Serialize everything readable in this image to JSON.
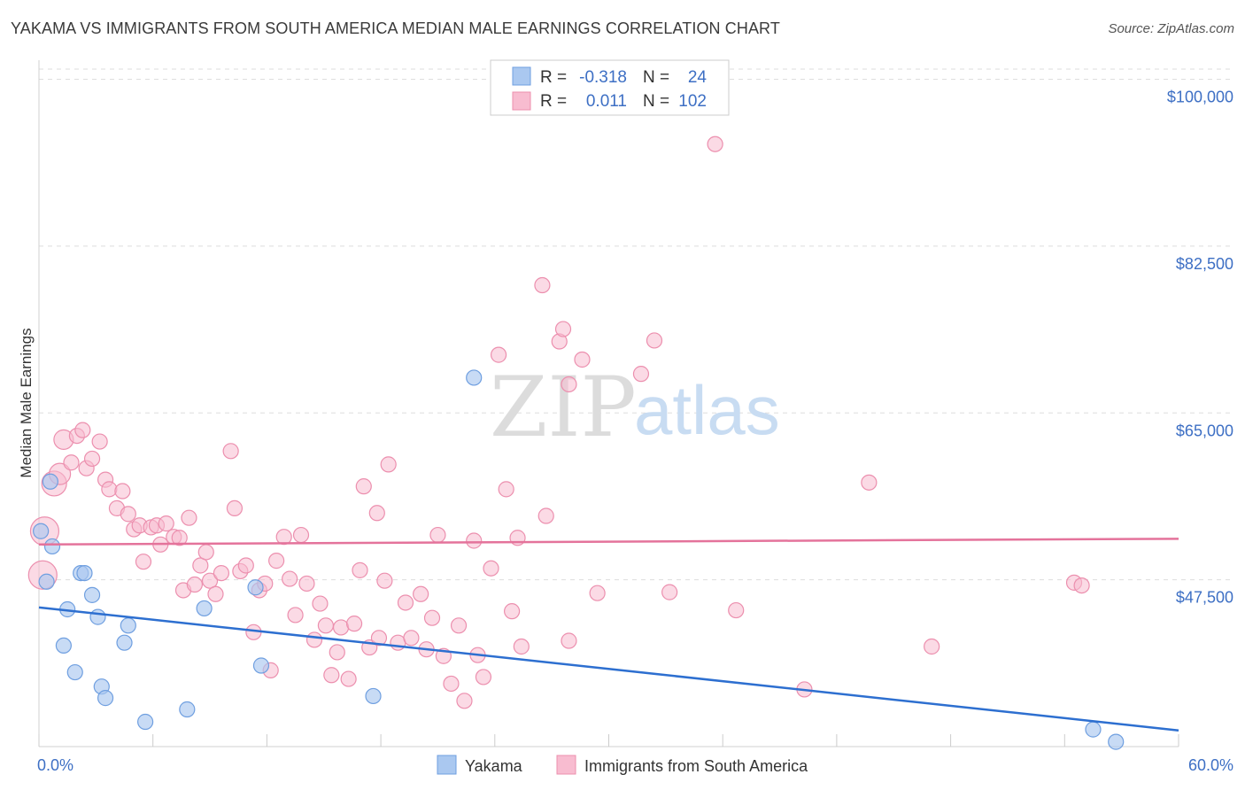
{
  "title": "YAKAMA VS IMMIGRANTS FROM SOUTH AMERICA MEDIAN MALE EARNINGS CORRELATION CHART",
  "source": "Source: ZipAtlas.com",
  "watermark": {
    "zip": "ZIP",
    "atlas": "atlas"
  },
  "colors": {
    "blue_fill": "#aac8f0",
    "blue_stroke": "#6f9fe0",
    "blue_line": "#2d6fd0",
    "pink_fill": "#f8bcd0",
    "pink_stroke": "#ec8fae",
    "pink_line": "#e4739b",
    "tick_text": "#3d6fc4",
    "grid": "#dddddd"
  },
  "legend": {
    "rows": [
      {
        "r_label": "R =",
        "r_value": "-0.318",
        "n_label": "N =",
        "n_value": "24"
      },
      {
        "r_label": "R =",
        "r_value": "0.011",
        "n_label": "N =",
        "n_value": "102"
      }
    ]
  },
  "bottom_legend": [
    "Yakama",
    "Immigrants from South America"
  ],
  "chart_data": {
    "type": "scatter",
    "title": "YAKAMA VS IMMIGRANTS FROM SOUTH AMERICA MEDIAN MALE EARNINGS CORRELATION CHART",
    "xlabel": "",
    "ylabel": "Median Male Earnings",
    "xlim": [
      0,
      60
    ],
    "ylim": [
      30000,
      102000
    ],
    "x_tick_labels": [
      "0.0%",
      "60.0%"
    ],
    "y_ticks": [
      47500,
      65000,
      82500,
      100000
    ],
    "y_tick_labels": [
      "$47,500",
      "$65,000",
      "$82,500",
      "$100,000"
    ],
    "series": [
      {
        "name": "Yakama",
        "r": -0.318,
        "n": 24,
        "trend": {
          "x": [
            0,
            60
          ],
          "y": [
            44600,
            31700
          ]
        },
        "points": [
          {
            "x": 0.1,
            "y": 52600
          },
          {
            "x": 0.4,
            "y": 47300
          },
          {
            "x": 0.6,
            "y": 57800
          },
          {
            "x": 0.7,
            "y": 51000
          },
          {
            "x": 1.3,
            "y": 40600
          },
          {
            "x": 1.5,
            "y": 44400
          },
          {
            "x": 1.9,
            "y": 37800
          },
          {
            "x": 2.2,
            "y": 48200
          },
          {
            "x": 2.4,
            "y": 48200
          },
          {
            "x": 2.8,
            "y": 45900
          },
          {
            "x": 3.1,
            "y": 43600
          },
          {
            "x": 3.3,
            "y": 36300
          },
          {
            "x": 3.5,
            "y": 35100
          },
          {
            "x": 4.5,
            "y": 40900
          },
          {
            "x": 4.7,
            "y": 42700
          },
          {
            "x": 5.6,
            "y": 32600
          },
          {
            "x": 7.8,
            "y": 33900
          },
          {
            "x": 8.7,
            "y": 44500
          },
          {
            "x": 11.4,
            "y": 46700
          },
          {
            "x": 11.7,
            "y": 38500
          },
          {
            "x": 17.6,
            "y": 35300
          },
          {
            "x": 22.9,
            "y": 68700
          },
          {
            "x": 55.5,
            "y": 31800
          },
          {
            "x": 56.7,
            "y": 30500
          }
        ]
      },
      {
        "name": "Immigrants from South America",
        "r": 0.011,
        "n": 102,
        "trend": {
          "x": [
            0,
            60
          ],
          "y": [
            51200,
            51800
          ]
        },
        "points": [
          {
            "x": 0.2,
            "y": 48000,
            "s": 16
          },
          {
            "x": 0.3,
            "y": 52600,
            "s": 16
          },
          {
            "x": 0.8,
            "y": 57600,
            "s": 14
          },
          {
            "x": 1.1,
            "y": 58600,
            "s": 12
          },
          {
            "x": 1.3,
            "y": 62200,
            "s": 11
          },
          {
            "x": 2.0,
            "y": 62600
          },
          {
            "x": 2.3,
            "y": 63200
          },
          {
            "x": 1.7,
            "y": 59800
          },
          {
            "x": 2.5,
            "y": 59200
          },
          {
            "x": 2.8,
            "y": 60200
          },
          {
            "x": 3.2,
            "y": 62000
          },
          {
            "x": 3.5,
            "y": 58000
          },
          {
            "x": 3.7,
            "y": 57000
          },
          {
            "x": 4.1,
            "y": 55000
          },
          {
            "x": 4.4,
            "y": 56800
          },
          {
            "x": 4.7,
            "y": 54400
          },
          {
            "x": 5.0,
            "y": 52800
          },
          {
            "x": 5.3,
            "y": 53200
          },
          {
            "x": 5.5,
            "y": 49400
          },
          {
            "x": 5.9,
            "y": 53000
          },
          {
            "x": 6.2,
            "y": 53200
          },
          {
            "x": 6.4,
            "y": 51200
          },
          {
            "x": 6.7,
            "y": 53400
          },
          {
            "x": 7.1,
            "y": 52000
          },
          {
            "x": 7.4,
            "y": 51900
          },
          {
            "x": 7.6,
            "y": 46400
          },
          {
            "x": 7.9,
            "y": 54000
          },
          {
            "x": 8.2,
            "y": 47000
          },
          {
            "x": 8.5,
            "y": 49000
          },
          {
            "x": 8.8,
            "y": 50400
          },
          {
            "x": 9.0,
            "y": 47400
          },
          {
            "x": 9.3,
            "y": 46000
          },
          {
            "x": 9.6,
            "y": 48200
          },
          {
            "x": 10.1,
            "y": 61000
          },
          {
            "x": 10.3,
            "y": 55000
          },
          {
            "x": 10.6,
            "y": 48400
          },
          {
            "x": 10.9,
            "y": 49000
          },
          {
            "x": 11.3,
            "y": 42000
          },
          {
            "x": 11.6,
            "y": 46400
          },
          {
            "x": 11.9,
            "y": 47100
          },
          {
            "x": 12.2,
            "y": 38000
          },
          {
            "x": 12.5,
            "y": 49500
          },
          {
            "x": 12.9,
            "y": 52000
          },
          {
            "x": 13.2,
            "y": 47600
          },
          {
            "x": 13.5,
            "y": 43800
          },
          {
            "x": 13.8,
            "y": 52200
          },
          {
            "x": 14.1,
            "y": 47100
          },
          {
            "x": 14.5,
            "y": 41200
          },
          {
            "x": 14.8,
            "y": 45000
          },
          {
            "x": 15.1,
            "y": 42700
          },
          {
            "x": 15.4,
            "y": 37500
          },
          {
            "x": 15.7,
            "y": 39900
          },
          {
            "x": 15.9,
            "y": 42500
          },
          {
            "x": 16.3,
            "y": 37100
          },
          {
            "x": 16.6,
            "y": 42900
          },
          {
            "x": 16.9,
            "y": 48500
          },
          {
            "x": 17.1,
            "y": 57300
          },
          {
            "x": 17.4,
            "y": 40400
          },
          {
            "x": 17.8,
            "y": 54500
          },
          {
            "x": 17.9,
            "y": 41400
          },
          {
            "x": 18.2,
            "y": 47400
          },
          {
            "x": 18.4,
            "y": 59600
          },
          {
            "x": 18.9,
            "y": 40900
          },
          {
            "x": 19.3,
            "y": 45100
          },
          {
            "x": 19.6,
            "y": 41400
          },
          {
            "x": 20.1,
            "y": 46000
          },
          {
            "x": 20.4,
            "y": 40200
          },
          {
            "x": 20.7,
            "y": 43500
          },
          {
            "x": 21.0,
            "y": 52200
          },
          {
            "x": 21.3,
            "y": 39500
          },
          {
            "x": 21.7,
            "y": 36600
          },
          {
            "x": 22.1,
            "y": 42700
          },
          {
            "x": 22.4,
            "y": 34800
          },
          {
            "x": 22.9,
            "y": 51600
          },
          {
            "x": 23.1,
            "y": 39600
          },
          {
            "x": 23.4,
            "y": 37300
          },
          {
            "x": 23.8,
            "y": 48700
          },
          {
            "x": 24.2,
            "y": 71100
          },
          {
            "x": 24.6,
            "y": 57000
          },
          {
            "x": 24.9,
            "y": 44200
          },
          {
            "x": 25.2,
            "y": 51900
          },
          {
            "x": 25.4,
            "y": 40500
          },
          {
            "x": 26.5,
            "y": 78400
          },
          {
            "x": 26.7,
            "y": 54200
          },
          {
            "x": 27.4,
            "y": 72500
          },
          {
            "x": 27.6,
            "y": 73800
          },
          {
            "x": 27.9,
            "y": 68000
          },
          {
            "x": 28.6,
            "y": 70600
          },
          {
            "x": 27.9,
            "y": 41100
          },
          {
            "x": 29.4,
            "y": 46100
          },
          {
            "x": 31.7,
            "y": 69100
          },
          {
            "x": 32.4,
            "y": 72600
          },
          {
            "x": 33.2,
            "y": 46200
          },
          {
            "x": 35.6,
            "y": 93200
          },
          {
            "x": 36.7,
            "y": 44300
          },
          {
            "x": 40.3,
            "y": 36000
          },
          {
            "x": 43.7,
            "y": 57700
          },
          {
            "x": 47.0,
            "y": 40500
          },
          {
            "x": 54.5,
            "y": 47200
          },
          {
            "x": 54.9,
            "y": 46900
          }
        ]
      }
    ]
  }
}
